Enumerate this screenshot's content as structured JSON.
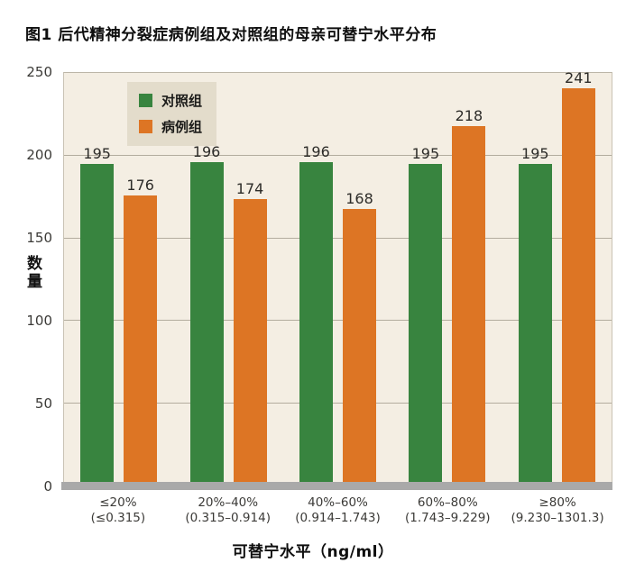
{
  "title": "图1  后代精神分裂症病例组及对照组的母亲可替宁水平分布",
  "chart_data": {
    "type": "bar",
    "categories": [
      "≤20%",
      "20%–40%",
      "40%–60%",
      "60%–80%",
      "≥80%"
    ],
    "category_sublabels": [
      "(≤0.315)",
      "(0.315–0.914)",
      "(0.914–1.743)",
      "(1.743–9.229)",
      "(9.230–1301.3)"
    ],
    "series": [
      {
        "name": "对照组",
        "color": "#38843f",
        "values": [
          195,
          196,
          196,
          195,
          195
        ]
      },
      {
        "name": "病例组",
        "color": "#dd7524",
        "values": [
          176,
          174,
          168,
          218,
          241
        ]
      }
    ],
    "title": "图1  后代精神分裂症病例组及对照组的母亲可替宁水平分布",
    "xlabel": "可替宁水平（ng/ml）",
    "ylabel": "数量",
    "ylim": [
      0,
      250
    ],
    "ytick_step": 50,
    "grid": true,
    "legend_position": "top-left",
    "show_value_labels": true
  },
  "colors": {
    "plot_background": "#f4eee3",
    "legend_background": "#e3dccb",
    "gridline": "#b3ac9e",
    "baseline": "#a9a9a9",
    "tick_text": "#3b3a37",
    "value_text": "#2d2c29"
  }
}
